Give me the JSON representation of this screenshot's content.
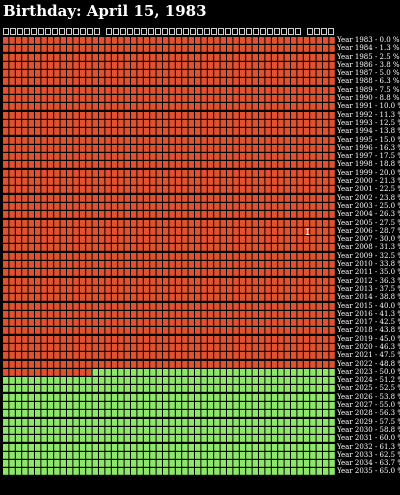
{
  "header": {
    "title": "Birthday: April 15, 1983"
  },
  "hint_groups": [
    14,
    28,
    4
  ],
  "colors": {
    "lived": "#e0512f",
    "future": "#8de86a",
    "background": "#000000",
    "text": "#ffffff"
  },
  "weeks_per_year": 52,
  "current_week_in_row": 14,
  "years": [
    {
      "label": "Year 1983 - 0.0 %",
      "status": "lived"
    },
    {
      "label": "Year 1984 - 1.3 %",
      "status": "lived"
    },
    {
      "label": "Year 1985 - 2.5 %",
      "status": "lived"
    },
    {
      "label": "Year 1986 - 3.8 %",
      "status": "lived"
    },
    {
      "label": "Year 1987 - 5.0 %",
      "status": "lived"
    },
    {
      "label": "Year 1988 - 6.3 %",
      "status": "lived"
    },
    {
      "label": "Year 1989 - 7.5 %",
      "status": "lived"
    },
    {
      "label": "Year 1990 - 8.8 %",
      "status": "lived"
    },
    {
      "label": "Year 1991 - 10.0 %",
      "status": "lived"
    },
    {
      "label": "Year 1992 - 11.3 %",
      "status": "lived"
    },
    {
      "label": "Year 1993 - 12.5 %",
      "status": "lived"
    },
    {
      "label": "Year 1994 - 13.8 %",
      "status": "lived"
    },
    {
      "label": "Year 1995 - 15.0 %",
      "status": "lived"
    },
    {
      "label": "Year 1996 - 16.3 %",
      "status": "lived"
    },
    {
      "label": "Year 1997 - 17.5 %",
      "status": "lived"
    },
    {
      "label": "Year 1998 - 18.8 %",
      "status": "lived"
    },
    {
      "label": "Year 1999 - 20.0 %",
      "status": "lived"
    },
    {
      "label": "Year 2000 - 21.3 %",
      "status": "lived"
    },
    {
      "label": "Year 2001 - 22.5 %",
      "status": "lived"
    },
    {
      "label": "Year 2002 - 23.8 %",
      "status": "lived"
    },
    {
      "label": "Year 2003 - 25.0 %",
      "status": "lived"
    },
    {
      "label": "Year 2004 - 26.3 %",
      "status": "lived"
    },
    {
      "label": "Year 2005 - 27.5 %",
      "status": "lived"
    },
    {
      "label": "Year 2006 - 28.7 %",
      "status": "lived"
    },
    {
      "label": "Year 2007 - 30.0 %",
      "status": "lived"
    },
    {
      "label": "Year 2008 - 31.3 %",
      "status": "lived"
    },
    {
      "label": "Year 2009 - 32.5 %",
      "status": "lived"
    },
    {
      "label": "Year 2010 - 33.8 %",
      "status": "lived"
    },
    {
      "label": "Year 2011 - 35.0 %",
      "status": "lived"
    },
    {
      "label": "Year 2012 - 36.3 %",
      "status": "lived"
    },
    {
      "label": "Year 2013 - 37.5 %",
      "status": "lived"
    },
    {
      "label": "Year 2014 - 38.8 %",
      "status": "lived"
    },
    {
      "label": "Year 2015 - 40.0 %",
      "status": "lived"
    },
    {
      "label": "Year 2016 - 41.3 %",
      "status": "lived"
    },
    {
      "label": "Year 2017 - 42.5 %",
      "status": "lived"
    },
    {
      "label": "Year 2018 - 43.8 %",
      "status": "lived"
    },
    {
      "label": "Year 2019 - 45.0 %",
      "status": "lived"
    },
    {
      "label": "Year 2020 - 46.3 %",
      "status": "lived"
    },
    {
      "label": "Year 2021 - 47.5 %",
      "status": "lived"
    },
    {
      "label": "Year 2022 - 48.8 %",
      "status": "lived"
    },
    {
      "label": "Year 2023 - 50.0 %",
      "status": "current"
    },
    {
      "label": "Year 2024 - 51.2 %",
      "status": "future"
    },
    {
      "label": "Year 2025 - 52.5 %",
      "status": "future"
    },
    {
      "label": "Year 2026 - 53.8 %",
      "status": "future"
    },
    {
      "label": "Year 2027 - 55.0 %",
      "status": "future"
    },
    {
      "label": "Year 2028 - 56.3 %",
      "status": "future"
    },
    {
      "label": "Year 2029 - 57.5 %",
      "status": "future"
    },
    {
      "label": "Year 2030 - 58.8 %",
      "status": "future"
    },
    {
      "label": "Year 2031 - 60.0 %",
      "status": "future"
    },
    {
      "label": "Year 2032 - 61.3 %",
      "status": "future"
    },
    {
      "label": "Year 2033 - 62.5 %",
      "status": "future"
    },
    {
      "label": "Year 2034 - 63.7 %",
      "status": "future"
    },
    {
      "label": "Year 2035 - 65.0 %",
      "status": "future"
    }
  ]
}
